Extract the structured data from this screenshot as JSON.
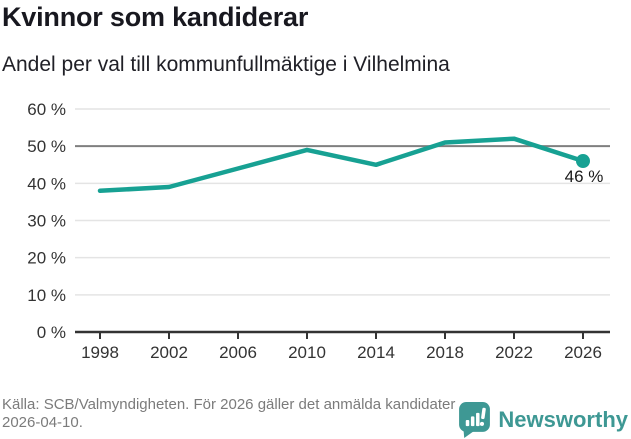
{
  "header": {
    "title": "Kvinnor som kandiderar",
    "subtitle": "Andel per val till kommunfullmäktige i Vilhelmina"
  },
  "chart_data": {
    "type": "line",
    "title": "Kvinnor som kandiderar",
    "subtitle": "Andel per val till kommunfullmäktige i Vilhelmina",
    "x": [
      "1998",
      "2002",
      "2006",
      "2010",
      "2014",
      "2018",
      "2022",
      "2026"
    ],
    "series": [
      {
        "name": "",
        "values": [
          38,
          39,
          44,
          49,
          45,
          51,
          52,
          46
        ]
      }
    ],
    "ylim": [
      0,
      60
    ],
    "y_ticks": [
      {
        "value": 0,
        "label": "0 %"
      },
      {
        "value": 10,
        "label": "10 %"
      },
      {
        "value": 20,
        "label": "20 %"
      },
      {
        "value": 30,
        "label": "30 %"
      },
      {
        "value": 40,
        "label": "40 %"
      },
      {
        "value": 50,
        "label": "50 %"
      },
      {
        "value": 60,
        "label": "60 %"
      }
    ],
    "reference_line": 50,
    "end_label": "46 %",
    "grid": true,
    "legend": "none",
    "colors": {
      "line": "#17a193",
      "reference": "#7f7f7f",
      "grid": "#e4e4e4",
      "axis": "#333333"
    }
  },
  "footer": {
    "source_text": "Källa: SCB/Valmyndigheten. För 2026 gäller det anmälda kandidater 2026-04-10.",
    "brand": {
      "name": "Newsworthy",
      "color": "#3e9894",
      "icon": "newsworthy-speech-bubble-barchart-icon"
    }
  }
}
